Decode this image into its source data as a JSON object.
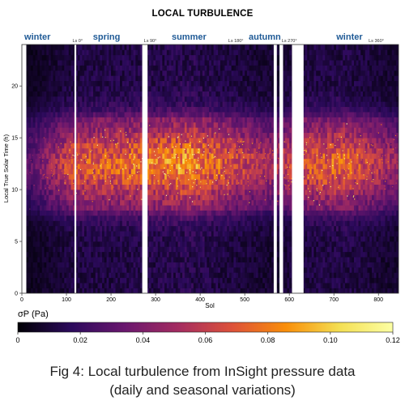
{
  "chart_data": {
    "type": "heatmap",
    "title": "LOCAL TURBULENCE",
    "xlabel": "Sol",
    "ylabel": "Local True Solar Time (h)",
    "x_ticks": [
      0,
      100,
      200,
      300,
      400,
      500,
      600,
      700,
      800
    ],
    "y_ticks": [
      0,
      5,
      10,
      15,
      20
    ],
    "xlim": [
      0,
      845
    ],
    "ylim": [
      0,
      24
    ],
    "colorbar": {
      "label": "σP (Pa)",
      "ticks": [
        "0",
        "0.02",
        "0.04",
        "0.06",
        "0.08",
        "0.10",
        "0.12"
      ],
      "range": [
        0,
        0.12
      ],
      "colors": [
        "#000004",
        "#2c0a5c",
        "#6a176e",
        "#a42c60",
        "#dd513a",
        "#f98e09",
        "#f4df53",
        "#fcffa4"
      ]
    },
    "seasons": [
      {
        "name": "winter",
        "sol": 35,
        "color": "#1f5a96"
      },
      {
        "name": "spring",
        "sol": 190,
        "color": "#1f5a96"
      },
      {
        "name": "summer",
        "sol": 375,
        "color": "#1f5a96"
      },
      {
        "name": "autumn",
        "sol": 545,
        "color": "#1f5a96"
      },
      {
        "name": "winter",
        "sol": 735,
        "color": "#1f5a96"
      }
    ],
    "ls_markers": [
      {
        "label": "Ls 0°",
        "sol": 125
      },
      {
        "label": "Ls 90°",
        "sol": 288
      },
      {
        "label": "Ls 180°",
        "sol": 480
      },
      {
        "label": "Ls 270°",
        "sol": 600
      },
      {
        "label": "Ls 360°",
        "sol": 795
      }
    ],
    "data_gaps_sol": [
      [
        0,
        10
      ],
      [
        118,
        122
      ],
      [
        270,
        282
      ],
      [
        565,
        572
      ],
      [
        578,
        586
      ],
      [
        606,
        632
      ]
    ],
    "turbulence_profile": {
      "peak_lmst_h": 12.5,
      "active_window_h": [
        8,
        17
      ],
      "seasonal_peak_sigma": [
        {
          "sol": 20,
          "sigma": 0.03
        },
        {
          "sol": 120,
          "sigma": 0.07
        },
        {
          "sol": 250,
          "sigma": 0.075
        },
        {
          "sol": 380,
          "sigma": 0.085
        },
        {
          "sol": 480,
          "sigma": 0.065
        },
        {
          "sol": 560,
          "sigma": 0.05
        },
        {
          "sol": 650,
          "sigma": 0.07
        },
        {
          "sol": 720,
          "sigma": 0.075
        },
        {
          "sol": 845,
          "sigma": 0.045
        }
      ]
    }
  },
  "caption": {
    "line1": "Fig 4: Local turbulence from InSight pressure data",
    "line2": "(daily and seasonal variations)"
  }
}
